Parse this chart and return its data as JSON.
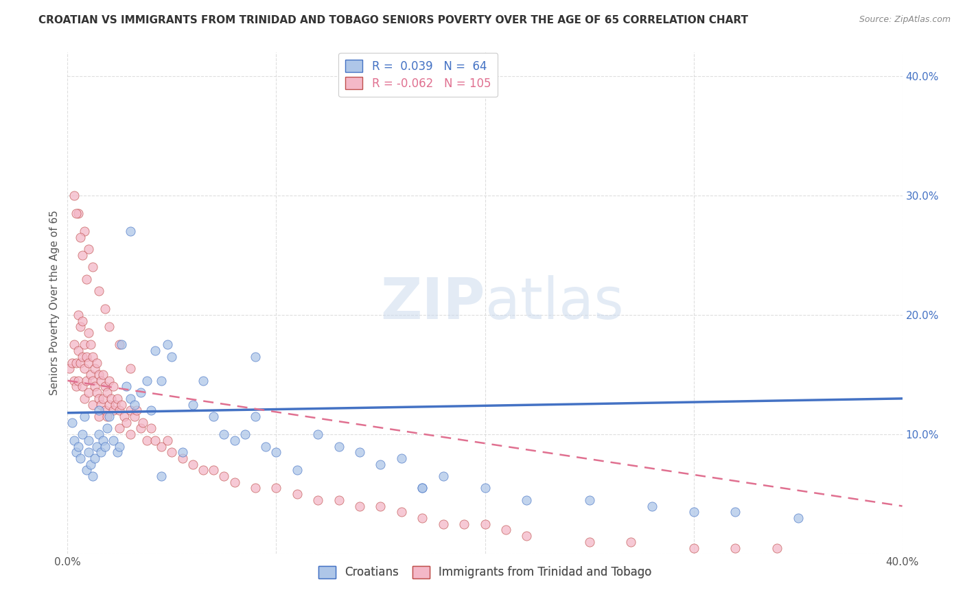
{
  "title": "CROATIAN VS IMMIGRANTS FROM TRINIDAD AND TOBAGO SENIORS POVERTY OVER THE AGE OF 65 CORRELATION CHART",
  "source": "Source: ZipAtlas.com",
  "ylabel": "Seniors Poverty Over the Age of 65",
  "xlim": [
    0.0,
    0.4
  ],
  "ylim": [
    0.0,
    0.42
  ],
  "croatians_color": "#aec6e8",
  "croatians_edge": "#4472c4",
  "trinidad_color": "#f4b8c8",
  "trinidad_edge": "#c0504d",
  "trend_croatian_color": "#4472c4",
  "trend_trinidad_color": "#e07090",
  "watermark": "ZIPatlas",
  "R_croatian": 0.039,
  "N_croatian": 64,
  "R_trinidad": -0.062,
  "N_trinidad": 105,
  "background_color": "#ffffff",
  "grid_color": "#d0d0d0",
  "title_fontsize": 11,
  "label_fontsize": 11,
  "tick_fontsize": 11,
  "legend_fontsize": 12,
  "croatians_x": [
    0.002,
    0.003,
    0.004,
    0.005,
    0.006,
    0.007,
    0.008,
    0.009,
    0.01,
    0.01,
    0.011,
    0.012,
    0.013,
    0.014,
    0.015,
    0.015,
    0.016,
    0.017,
    0.018,
    0.019,
    0.02,
    0.022,
    0.024,
    0.025,
    0.026,
    0.028,
    0.03,
    0.032,
    0.035,
    0.038,
    0.04,
    0.042,
    0.045,
    0.048,
    0.05,
    0.055,
    0.06,
    0.065,
    0.07,
    0.075,
    0.08,
    0.085,
    0.09,
    0.095,
    0.1,
    0.11,
    0.12,
    0.13,
    0.14,
    0.15,
    0.16,
    0.17,
    0.18,
    0.2,
    0.22,
    0.25,
    0.28,
    0.3,
    0.32,
    0.35,
    0.03,
    0.045,
    0.09,
    0.17
  ],
  "croatians_y": [
    0.11,
    0.095,
    0.085,
    0.09,
    0.08,
    0.1,
    0.115,
    0.07,
    0.085,
    0.095,
    0.075,
    0.065,
    0.08,
    0.09,
    0.1,
    0.12,
    0.085,
    0.095,
    0.09,
    0.105,
    0.115,
    0.095,
    0.085,
    0.09,
    0.175,
    0.14,
    0.13,
    0.125,
    0.135,
    0.145,
    0.12,
    0.17,
    0.145,
    0.175,
    0.165,
    0.085,
    0.125,
    0.145,
    0.115,
    0.1,
    0.095,
    0.1,
    0.115,
    0.09,
    0.085,
    0.07,
    0.1,
    0.09,
    0.085,
    0.075,
    0.08,
    0.055,
    0.065,
    0.055,
    0.045,
    0.045,
    0.04,
    0.035,
    0.035,
    0.03,
    0.27,
    0.065,
    0.165,
    0.055
  ],
  "trinidad_x": [
    0.001,
    0.002,
    0.003,
    0.003,
    0.004,
    0.004,
    0.005,
    0.005,
    0.005,
    0.006,
    0.006,
    0.007,
    0.007,
    0.007,
    0.008,
    0.008,
    0.008,
    0.009,
    0.009,
    0.01,
    0.01,
    0.01,
    0.011,
    0.011,
    0.012,
    0.012,
    0.012,
    0.013,
    0.013,
    0.014,
    0.014,
    0.015,
    0.015,
    0.015,
    0.016,
    0.016,
    0.017,
    0.017,
    0.018,
    0.018,
    0.019,
    0.019,
    0.02,
    0.02,
    0.021,
    0.022,
    0.022,
    0.023,
    0.024,
    0.025,
    0.025,
    0.026,
    0.027,
    0.028,
    0.03,
    0.03,
    0.032,
    0.033,
    0.035,
    0.036,
    0.038,
    0.04,
    0.042,
    0.045,
    0.048,
    0.05,
    0.055,
    0.06,
    0.065,
    0.07,
    0.075,
    0.08,
    0.09,
    0.1,
    0.11,
    0.12,
    0.13,
    0.14,
    0.15,
    0.16,
    0.17,
    0.18,
    0.19,
    0.2,
    0.21,
    0.22,
    0.25,
    0.27,
    0.3,
    0.32,
    0.34,
    0.005,
    0.008,
    0.01,
    0.012,
    0.015,
    0.018,
    0.02,
    0.025,
    0.03,
    0.003,
    0.004,
    0.006,
    0.007,
    0.009
  ],
  "trinidad_y": [
    0.155,
    0.16,
    0.175,
    0.145,
    0.16,
    0.14,
    0.2,
    0.17,
    0.145,
    0.19,
    0.16,
    0.195,
    0.165,
    0.14,
    0.175,
    0.155,
    0.13,
    0.165,
    0.145,
    0.185,
    0.16,
    0.135,
    0.175,
    0.15,
    0.165,
    0.145,
    0.125,
    0.155,
    0.14,
    0.16,
    0.135,
    0.15,
    0.13,
    0.115,
    0.145,
    0.125,
    0.15,
    0.13,
    0.14,
    0.12,
    0.135,
    0.115,
    0.145,
    0.125,
    0.13,
    0.14,
    0.12,
    0.125,
    0.13,
    0.12,
    0.105,
    0.125,
    0.115,
    0.11,
    0.12,
    0.1,
    0.115,
    0.12,
    0.105,
    0.11,
    0.095,
    0.105,
    0.095,
    0.09,
    0.095,
    0.085,
    0.08,
    0.075,
    0.07,
    0.07,
    0.065,
    0.06,
    0.055,
    0.055,
    0.05,
    0.045,
    0.045,
    0.04,
    0.04,
    0.035,
    0.03,
    0.025,
    0.025,
    0.025,
    0.02,
    0.015,
    0.01,
    0.01,
    0.005,
    0.005,
    0.005,
    0.285,
    0.27,
    0.255,
    0.24,
    0.22,
    0.205,
    0.19,
    0.175,
    0.155,
    0.3,
    0.285,
    0.265,
    0.25,
    0.23
  ]
}
